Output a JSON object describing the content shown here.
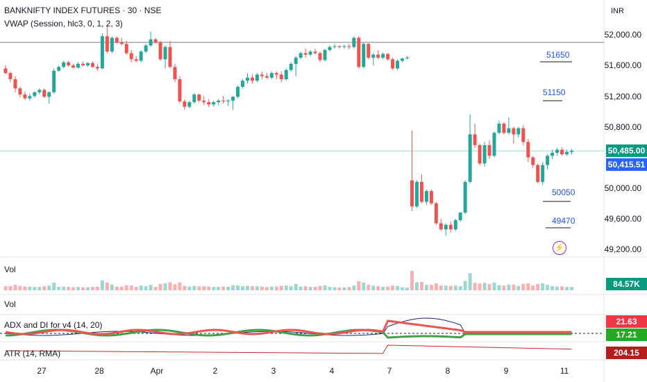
{
  "header": {
    "title": "BANKNIFTY INDEX FUTURES · 30 · NSE",
    "indicator": "VWAP (Session, hlc3, 0, 1, 2, 3)",
    "currency": "INR"
  },
  "panes": {
    "vol1": "Vol",
    "vol2": "Vol",
    "adx": "ADX and DI for v4 (14, 20)",
    "atr": "ATR (14, RMA)"
  },
  "price_axis": [
    "52,000.00",
    "51,600.00",
    "51,200.00",
    "50,800.00",
    "50,000.00",
    "49,600.00",
    "49,200.00"
  ],
  "badges": {
    "last_price": "50,485.00",
    "vwap": "50,415.51",
    "volume": "84.57K",
    "di_plus": "21.63",
    "di_minus": "17.21",
    "atr": "204.15"
  },
  "levels": [
    "51650",
    "51150",
    "50050",
    "49470"
  ],
  "x_axis": [
    "27",
    "28",
    "Apr",
    "2",
    "3",
    "4",
    "7",
    "8",
    "9",
    "11"
  ],
  "colors": {
    "up": "#26a69a",
    "down": "#ef5350",
    "level": "#1e53e5",
    "atr": "#c62828",
    "adx": "#1a237e"
  },
  "chart_data": {
    "type": "candlestick",
    "title": "BANKNIFTY INDEX FUTURES · 30 · NSE",
    "horizontal_lines": [
      51900,
      50485
    ],
    "price_range": [
      49100,
      52150
    ],
    "sessions": [
      {
        "label": "27",
        "ohlc": [
          [
            51560,
            51600,
            51480,
            51500
          ],
          [
            51500,
            51520,
            51380,
            51420
          ],
          [
            51420,
            51460,
            51250,
            51300
          ],
          [
            51300,
            51320,
            51180,
            51220
          ],
          [
            51220,
            51260,
            51150,
            51170
          ],
          [
            51170,
            51230,
            51140,
            51200
          ],
          [
            51200,
            51260,
            51180,
            51250
          ],
          [
            51250,
            51300,
            51220,
            51280
          ],
          [
            51280,
            51300,
            51180,
            51190
          ],
          [
            51190,
            51260,
            51100,
            51250
          ],
          [
            51250,
            51560,
            51230,
            51530
          ],
          [
            51530,
            51600,
            51520,
            51580
          ]
        ]
      },
      {
        "label": "28",
        "ohlc": [
          [
            51580,
            51660,
            51560,
            51640
          ],
          [
            51640,
            51660,
            51580,
            51600
          ],
          [
            51600,
            51620,
            51560,
            51570
          ],
          [
            51570,
            51640,
            51560,
            51620
          ],
          [
            51620,
            51650,
            51590,
            51600
          ],
          [
            51600,
            51640,
            51580,
            51630
          ],
          [
            51630,
            51650,
            51570,
            51580
          ],
          [
            51580,
            51620,
            51530,
            51560
          ],
          [
            51560,
            52020,
            51550,
            51980
          ],
          [
            51980,
            52110,
            51760,
            51780
          ],
          [
            51780,
            51980,
            51760,
            51960
          ],
          [
            51960,
            51980,
            51880,
            51900
          ]
        ]
      },
      {
        "label": "Apr",
        "ohlc": [
          [
            51900,
            51960,
            51860,
            51880
          ],
          [
            51880,
            51920,
            51740,
            51760
          ],
          [
            51760,
            51800,
            51640,
            51680
          ],
          [
            51680,
            51720,
            51640,
            51660
          ],
          [
            51660,
            51800,
            51640,
            51780
          ],
          [
            51780,
            51880,
            51760,
            51860
          ],
          [
            51860,
            52040,
            51840,
            51940
          ],
          [
            51940,
            51960,
            51880,
            51900
          ],
          [
            51900,
            51920,
            51660,
            51680
          ],
          [
            51680,
            51860,
            51560,
            51840
          ],
          [
            51840,
            51920,
            51560,
            51580
          ],
          [
            51580,
            51620,
            51380,
            51420
          ]
        ]
      },
      {
        "label": "2",
        "ohlc": [
          [
            51420,
            51460,
            51110,
            51130
          ],
          [
            51130,
            51160,
            51020,
            51060
          ],
          [
            51060,
            51140,
            51040,
            51120
          ],
          [
            51120,
            51240,
            51100,
            51220
          ],
          [
            51220,
            51230,
            51120,
            51140
          ],
          [
            51140,
            51200,
            51080,
            51120
          ],
          [
            51120,
            51160,
            51060,
            51090
          ],
          [
            51090,
            51140,
            51060,
            51120
          ],
          [
            51120,
            51160,
            51080,
            51140
          ],
          [
            51140,
            51200,
            51100,
            51130
          ],
          [
            51130,
            51160,
            51070,
            51140
          ],
          [
            51140,
            51200,
            51020,
            51190
          ]
        ]
      },
      {
        "label": "3",
        "ohlc": [
          [
            51190,
            51340,
            51170,
            51320
          ],
          [
            51320,
            51420,
            51300,
            51400
          ],
          [
            51400,
            51500,
            51360,
            51440
          ],
          [
            51440,
            51480,
            51360,
            51400
          ],
          [
            51400,
            51500,
            51380,
            51480
          ],
          [
            51480,
            51520,
            51420,
            51460
          ],
          [
            51460,
            51500,
            51420,
            51440
          ],
          [
            51440,
            51520,
            51420,
            51500
          ],
          [
            51500,
            51520,
            51420,
            51480
          ],
          [
            51480,
            51520,
            51380,
            51420
          ],
          [
            51420,
            51560,
            51400,
            51540
          ],
          [
            51540,
            51640,
            51520,
            51620
          ]
        ]
      },
      {
        "label": "4",
        "ohlc": [
          [
            51620,
            51720,
            51460,
            51700
          ],
          [
            51700,
            51780,
            51680,
            51760
          ],
          [
            51760,
            51820,
            51700,
            51740
          ],
          [
            51740,
            51800,
            51720,
            51780
          ],
          [
            51780,
            51820,
            51740,
            51760
          ],
          [
            51760,
            51780,
            51640,
            51670
          ],
          [
            51670,
            51820,
            51650,
            51800
          ],
          [
            51800,
            51860,
            51780,
            51840
          ],
          [
            51840,
            51880,
            51820,
            51850
          ],
          [
            51850,
            51860,
            51820,
            51840
          ],
          [
            51840,
            51870,
            51820,
            51850
          ],
          [
            51850,
            51880,
            51810,
            51840
          ]
        ]
      },
      {
        "label": "7",
        "ohlc": [
          [
            51840,
            51980,
            51820,
            51960
          ],
          [
            51960,
            51980,
            51560,
            51580
          ],
          [
            51580,
            51900,
            51560,
            51880
          ],
          [
            51880,
            51890,
            51680,
            51700
          ],
          [
            51700,
            51760,
            51600,
            51740
          ],
          [
            51740,
            51800,
            51680,
            51700
          ],
          [
            51700,
            51770,
            51680,
            51750
          ],
          [
            51750,
            51760,
            51660,
            51680
          ],
          [
            51680,
            51700,
            51540,
            51560
          ],
          [
            51560,
            51680,
            51540,
            51660
          ],
          [
            51660,
            51700,
            51640,
            51690
          ],
          [
            51690,
            51720,
            51680,
            51700
          ]
        ]
      },
      {
        "label": "8",
        "ohlc": [
          [
            50100,
            50750,
            49700,
            49760
          ],
          [
            49760,
            50100,
            49740,
            50080
          ],
          [
            50080,
            50180,
            49800,
            49820
          ],
          [
            49820,
            49980,
            49780,
            49960
          ],
          [
            49960,
            49980,
            49780,
            49800
          ],
          [
            49800,
            49820,
            49520,
            49540
          ],
          [
            49540,
            49600,
            49440,
            49460
          ],
          [
            49460,
            49540,
            49380,
            49520
          ],
          [
            49520,
            49560,
            49420,
            49460
          ],
          [
            49460,
            49600,
            49440,
            49580
          ],
          [
            49580,
            49680,
            49560,
            49680
          ],
          [
            49680,
            50100,
            49660,
            50080
          ]
        ]
      },
      {
        "label": "9",
        "ohlc": [
          [
            50080,
            50960,
            50060,
            50700
          ],
          [
            50700,
            50840,
            50520,
            50560
          ],
          [
            50560,
            50580,
            50300,
            50320
          ],
          [
            50320,
            50600,
            50280,
            50560
          ],
          [
            50560,
            50620,
            50380,
            50420
          ],
          [
            50420,
            50740,
            50400,
            50720
          ],
          [
            50720,
            50880,
            50700,
            50840
          ],
          [
            50840,
            50860,
            50700,
            50720
          ],
          [
            50720,
            50920,
            50700,
            50780
          ],
          [
            50780,
            50800,
            50580,
            50700
          ],
          [
            50700,
            50800,
            50660,
            50780
          ],
          [
            50780,
            50820,
            50560,
            50600
          ]
        ]
      },
      {
        "label": "11",
        "ohlc": [
          [
            50600,
            50640,
            50340,
            50400
          ],
          [
            50400,
            50420,
            50260,
            50300
          ],
          [
            50300,
            50320,
            50060,
            50080
          ],
          [
            50080,
            50340,
            50040,
            50300
          ],
          [
            50300,
            50440,
            50240,
            50420
          ],
          [
            50420,
            50500,
            50380,
            50460
          ],
          [
            50460,
            50520,
            50420,
            50500
          ],
          [
            50500,
            50530,
            50420,
            50440
          ],
          [
            50440,
            50500,
            50420,
            50470
          ],
          [
            50470,
            50510,
            50440,
            50485
          ]
        ]
      }
    ]
  }
}
